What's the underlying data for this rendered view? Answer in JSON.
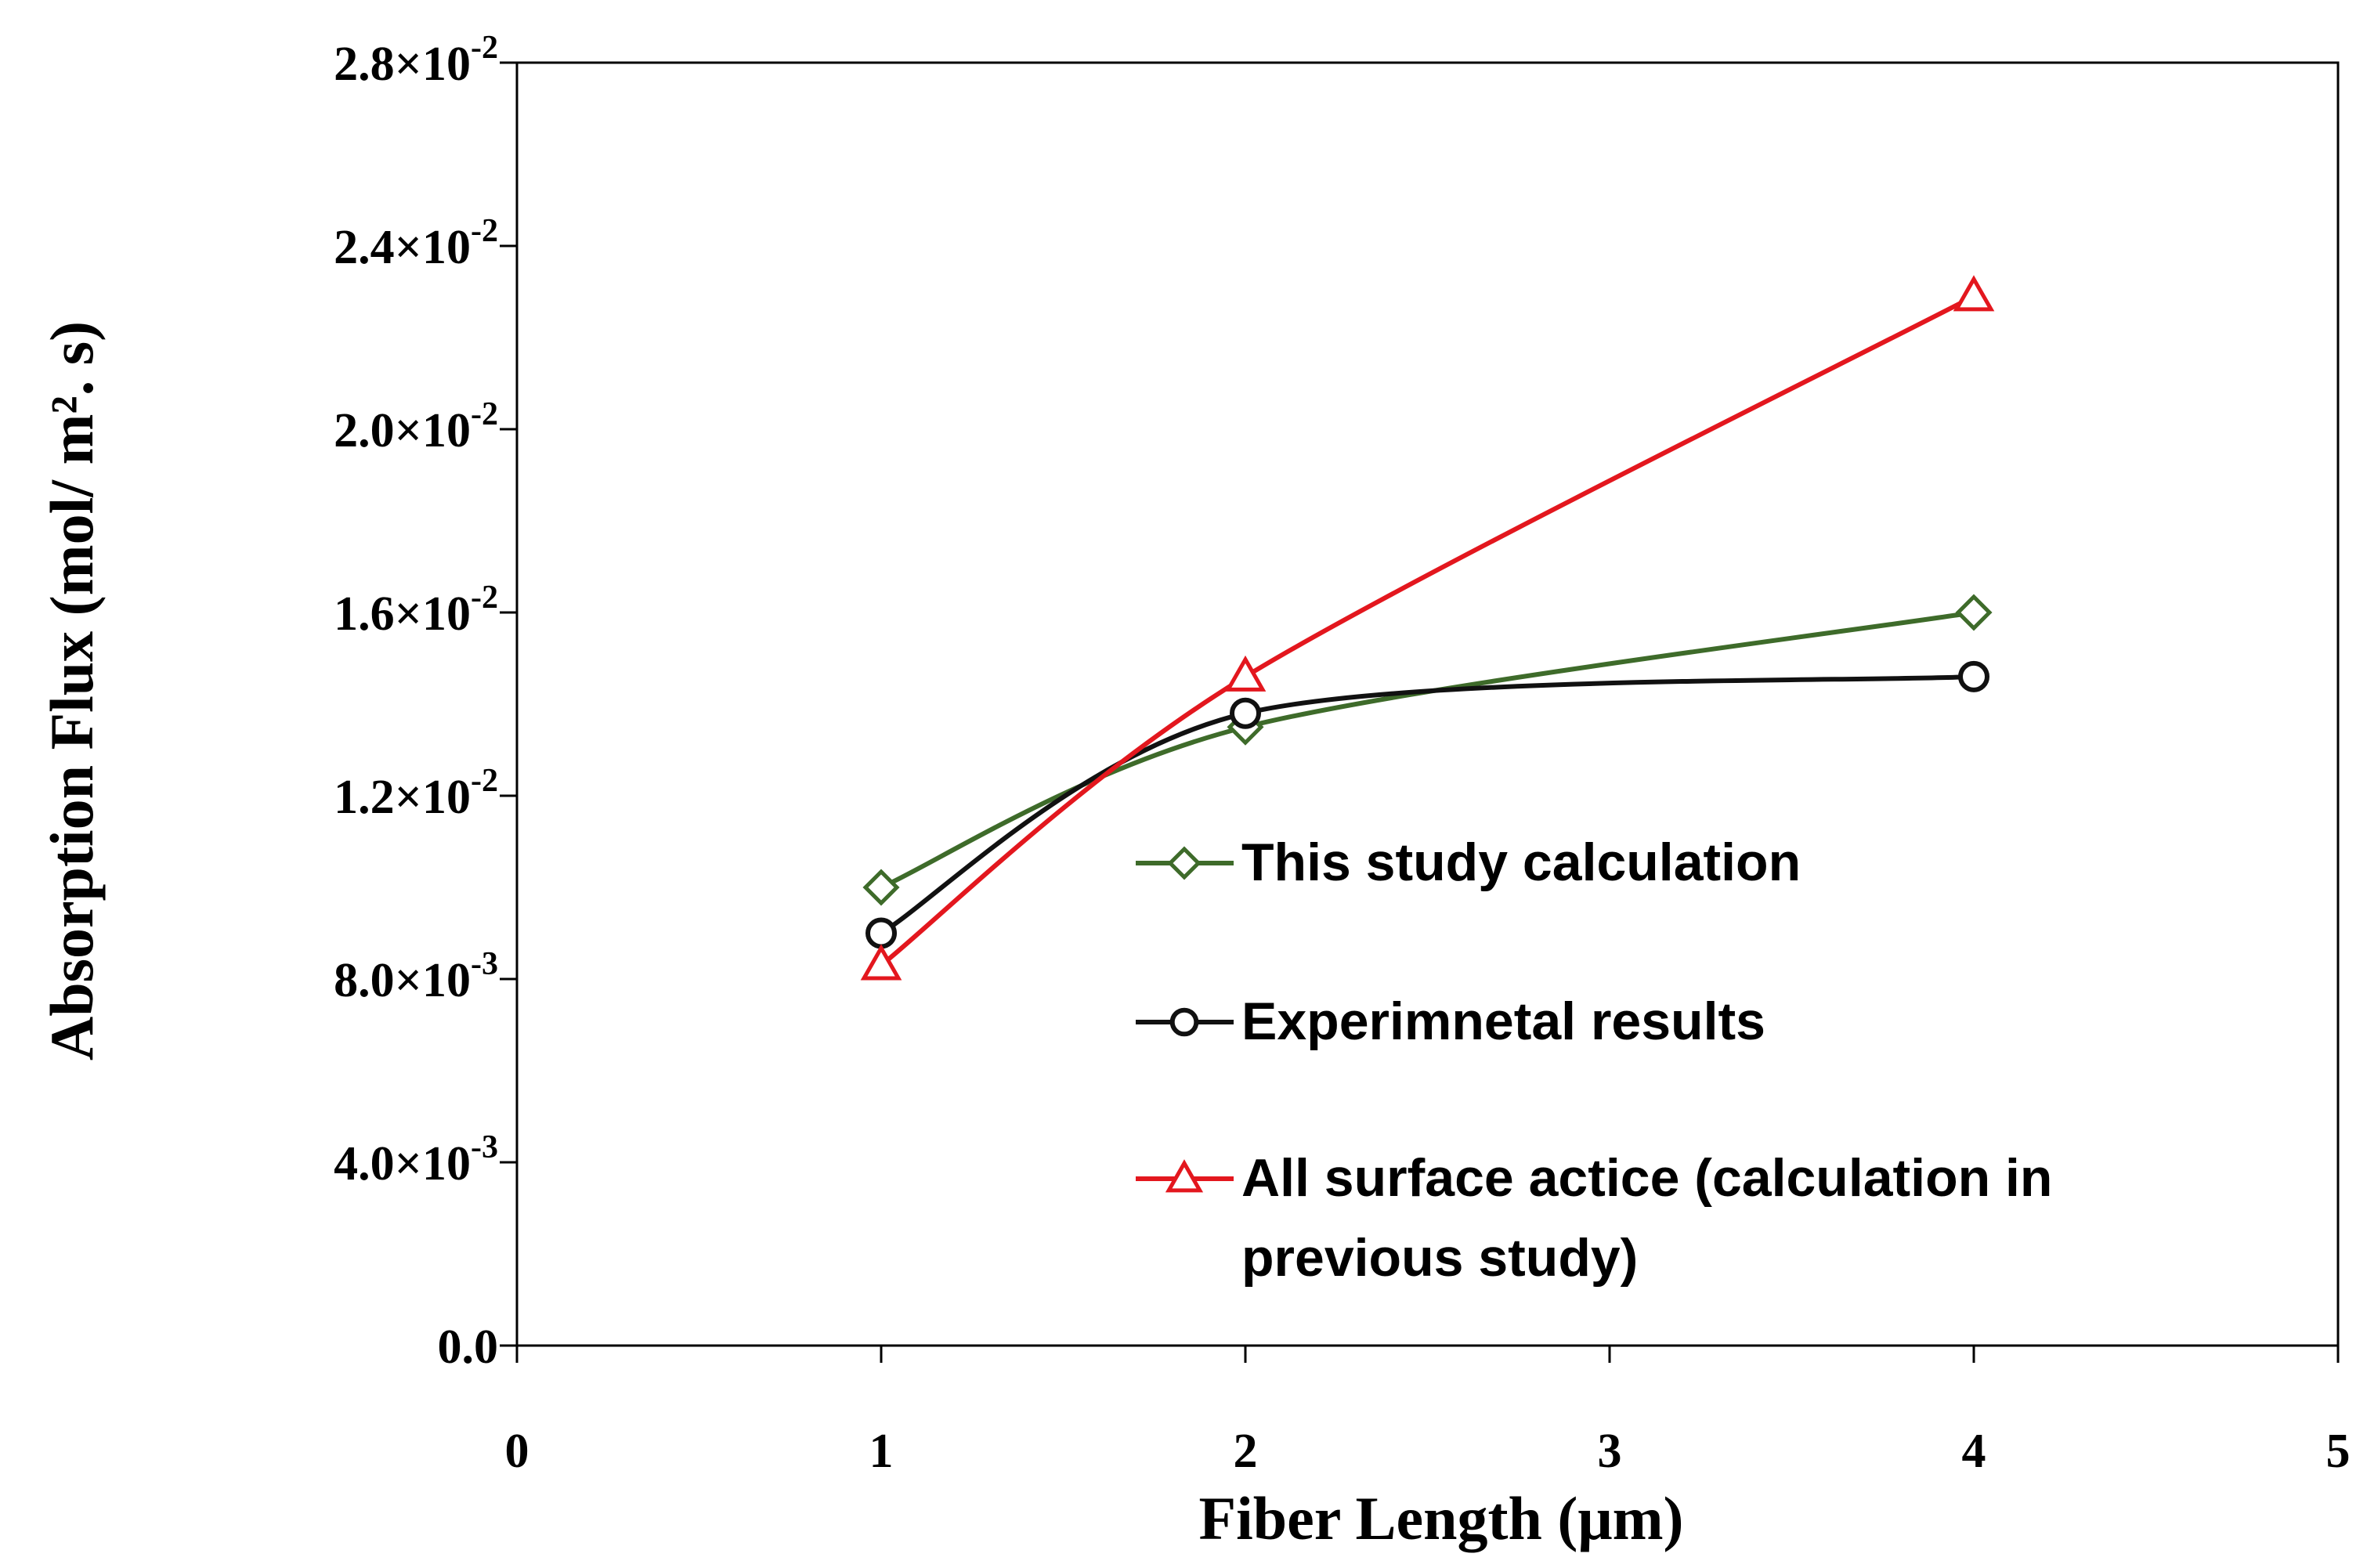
{
  "chart_data": {
    "type": "line",
    "title": "",
    "xlabel": "Fiber Length (μm)",
    "ylabel": "Absorption Flux (mol/ m². s)",
    "xlim": [
      0,
      5
    ],
    "ylim": [
      0,
      0.028
    ],
    "grid": false,
    "legend_position": "center-right",
    "x_ticks": [
      {
        "value": 0,
        "label": "0"
      },
      {
        "value": 1,
        "label": "1"
      },
      {
        "value": 2,
        "label": "2"
      },
      {
        "value": 3,
        "label": "3"
      },
      {
        "value": 4,
        "label": "4"
      },
      {
        "value": 5,
        "label": "5"
      }
    ],
    "y_ticks": [
      {
        "value": 0,
        "mantissa": "0.0",
        "exponent": ""
      },
      {
        "value": 0.004,
        "mantissa": "4.0",
        "exponent": "-3"
      },
      {
        "value": 0.008,
        "mantissa": "8.0",
        "exponent": "-3"
      },
      {
        "value": 0.012,
        "mantissa": "1.2",
        "exponent": "-2"
      },
      {
        "value": 0.016,
        "mantissa": "1.6",
        "exponent": "-2"
      },
      {
        "value": 0.02,
        "mantissa": "2.0",
        "exponent": "-2"
      },
      {
        "value": 0.024,
        "mantissa": "2.4",
        "exponent": "-2"
      },
      {
        "value": 0.028,
        "mantissa": "2.8",
        "exponent": "-2"
      }
    ],
    "series": [
      {
        "name": "This study calculation",
        "color": "#3e6b2a",
        "marker": "diamond",
        "x": [
          1,
          2,
          4
        ],
        "y": [
          0.01,
          0.0135,
          0.016
        ]
      },
      {
        "name": "Experimnetal results",
        "color": "#111111",
        "marker": "circle",
        "x": [
          1,
          2,
          4
        ],
        "y": [
          0.009,
          0.0138,
          0.0146
        ]
      },
      {
        "name": "All surface actice (calculation in previous study)",
        "legend_lines": [
          "All surface actice (calculation in",
          "previous study)"
        ],
        "color": "#e3171e",
        "marker": "triangle",
        "x": [
          1,
          2,
          4
        ],
        "y": [
          0.0083,
          0.0146,
          0.0229
        ]
      }
    ]
  }
}
